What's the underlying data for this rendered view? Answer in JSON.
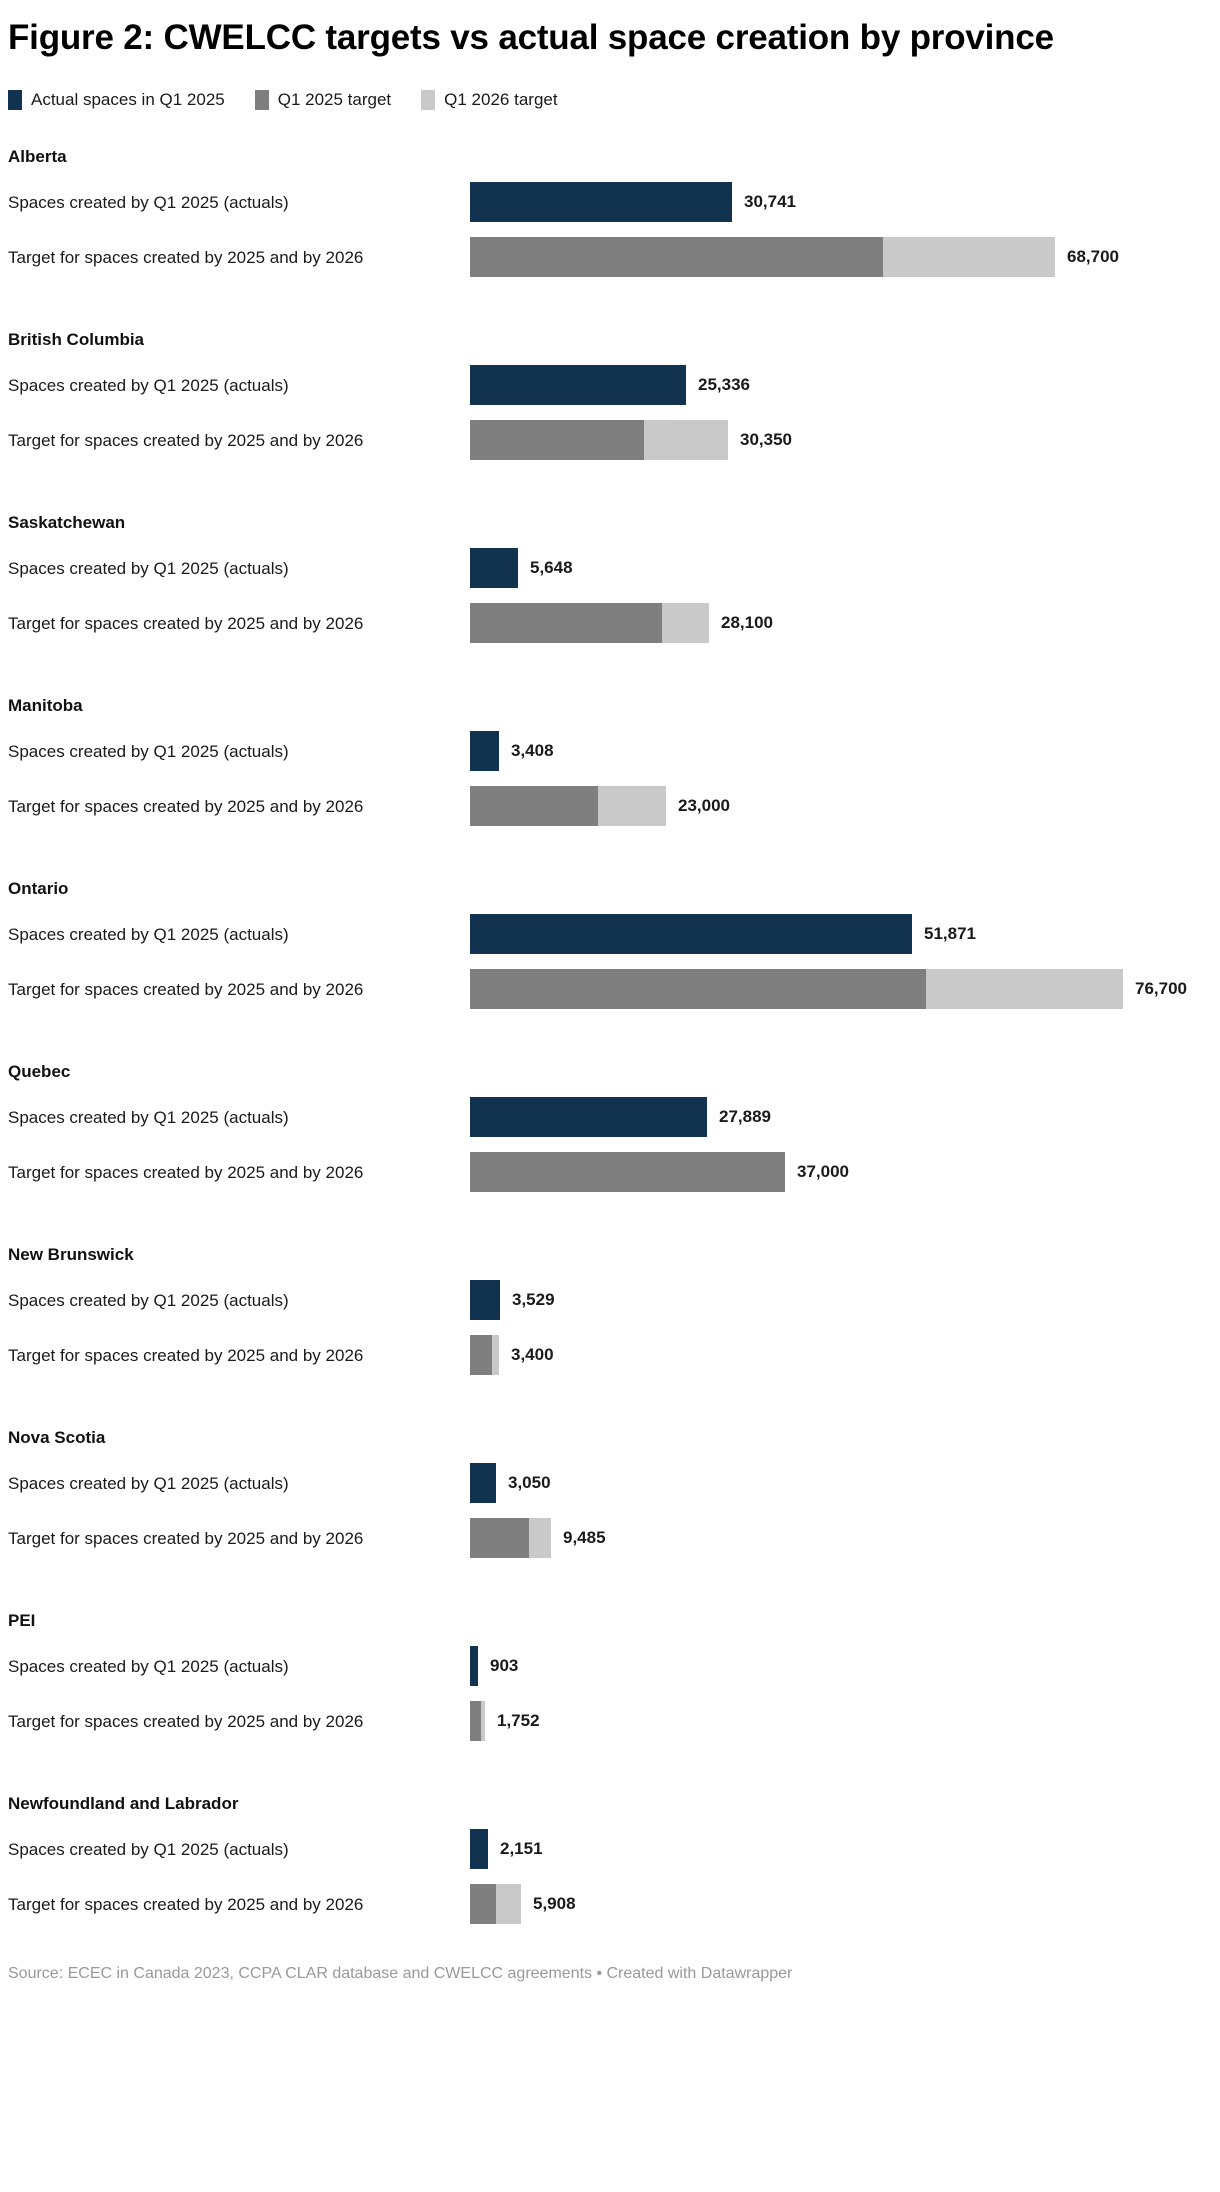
{
  "title": "Figure 2: CWELCC targets vs actual space creation by province",
  "legend": {
    "items": [
      {
        "label": "Actual spaces in Q1 2025",
        "color": "#12334f",
        "icon": "legend-swatch-navy"
      },
      {
        "label": "Q1 2025 target",
        "color": "#7f7f7f",
        "icon": "legend-swatch-gray"
      },
      {
        "label": "Q1 2026 target",
        "color": "#c9c9c9",
        "icon": "legend-swatch-lightgray"
      }
    ]
  },
  "row_labels": {
    "actual": "Spaces created by Q1 2025 (actuals)",
    "target": "Target for spaces created by 2025 and by 2026"
  },
  "colors": {
    "actual": "#12334f",
    "target_2025": "#7f7f7f",
    "target_2026": "#c9c9c9"
  },
  "provinces": [
    {
      "name": "Alberta",
      "actual": 30741,
      "actual_label": "30,741",
      "target_2025_est": 48500,
      "target_total": 68700,
      "target_label": "68,700"
    },
    {
      "name": "British Columbia",
      "actual": 25336,
      "actual_label": "25,336",
      "target_2025_est": 20450,
      "target_total": 30350,
      "target_label": "30,350"
    },
    {
      "name": "Saskatchewan",
      "actual": 5648,
      "actual_label": "5,648",
      "target_2025_est": 22600,
      "target_total": 28100,
      "target_label": "28,100"
    },
    {
      "name": "Manitoba",
      "actual": 3408,
      "actual_label": "3,408",
      "target_2025_est": 15000,
      "target_total": 23000,
      "target_label": "23,000"
    },
    {
      "name": "Ontario",
      "actual": 51871,
      "actual_label": "51,871",
      "target_2025_est": 53600,
      "target_total": 76700,
      "target_label": "76,700"
    },
    {
      "name": "Quebec",
      "actual": 27889,
      "actual_label": "27,889",
      "target_2025_est": 37000,
      "target_total": 37000,
      "target_label": "37,000"
    },
    {
      "name": "New Brunswick",
      "actual": 3529,
      "actual_label": "3,529",
      "target_2025_est": 2600,
      "target_total": 3400,
      "target_label": "3,400"
    },
    {
      "name": "Nova Scotia",
      "actual": 3050,
      "actual_label": "3,050",
      "target_2025_est": 6900,
      "target_total": 9485,
      "target_label": "9,485"
    },
    {
      "name": "PEI",
      "actual": 903,
      "actual_label": "903",
      "target_2025_est": 1300,
      "target_total": 1752,
      "target_label": "1,752"
    },
    {
      "name": "Newfoundland and Labrador",
      "actual": 2151,
      "actual_label": "2,151",
      "target_2025_est": 3000,
      "target_total": 5908,
      "target_label": "5,908"
    }
  ],
  "footer": {
    "source": "Source: ECEC in Canada 2023, CCPA CLAR database and CWELCC agreements • Created with Datawrapper"
  },
  "chart_data": {
    "type": "bar",
    "orientation": "horizontal",
    "title": "Figure 2: CWELCC targets vs actual space creation by province",
    "categories": [
      "Alberta",
      "British Columbia",
      "Saskatchewan",
      "Manitoba",
      "Ontario",
      "Quebec",
      "New Brunswick",
      "Nova Scotia",
      "PEI",
      "Newfoundland and Labrador"
    ],
    "series": [
      {
        "name": "Actual spaces in Q1 2025",
        "values": [
          30741,
          25336,
          5648,
          3408,
          51871,
          27889,
          3529,
          3050,
          903,
          2151
        ]
      },
      {
        "name": "Q1 2025 target (estimated from stacked segment widths)",
        "values": [
          48500,
          20450,
          22600,
          15000,
          53600,
          37000,
          2600,
          6900,
          1300,
          3000
        ]
      },
      {
        "name": "Q1 2026 target (bar total, labeled)",
        "values": [
          68700,
          30350,
          28100,
          23000,
          76700,
          37000,
          3400,
          9485,
          1752,
          5908
        ]
      }
    ],
    "bar_structure": "Each province has two bars: a navy 'actuals' bar, and a stacked target bar (gray = Q1 2025 target, light gray = remainder up to Q1 2026 target total)",
    "value_labels": true,
    "grid": false,
    "xlim": [
      0,
      76700
    ],
    "legend_position": "top"
  }
}
